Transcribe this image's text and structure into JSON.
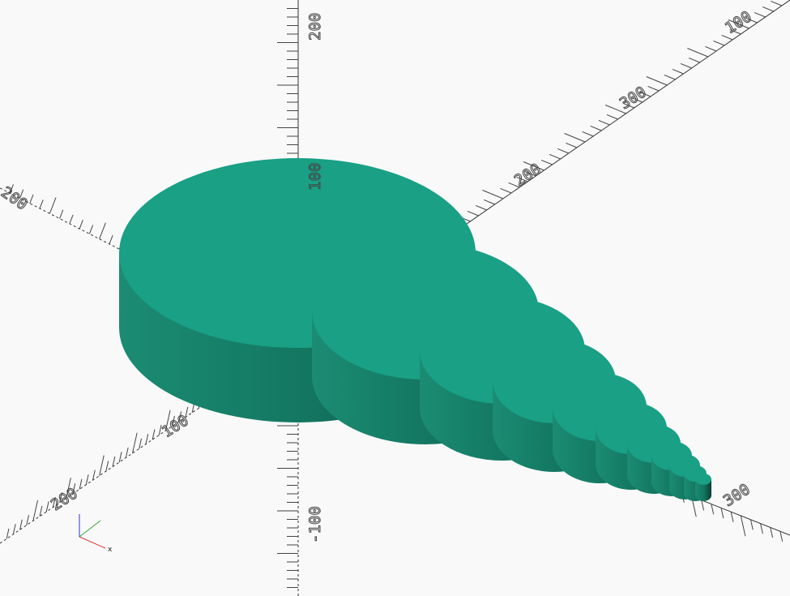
{
  "viewport": {
    "background": "#f9f9f9",
    "axis_color": "#333333",
    "model_colors": {
      "top": "#19a085",
      "side_light": "#1b8c73",
      "side_dark": "#0a3d31"
    }
  },
  "axes": {
    "labels": [
      {
        "id": "x-label-100",
        "text": "100"
      },
      {
        "id": "x-label-200",
        "text": "200"
      },
      {
        "id": "x-label-300",
        "text": "300"
      },
      {
        "id": "y-label-200",
        "text": "200"
      },
      {
        "id": "y-label-300",
        "text": "300"
      },
      {
        "id": "y-label-neg-100",
        "text": "100"
      },
      {
        "id": "y-label-neg-200",
        "text": "200"
      },
      {
        "id": "z-label-100",
        "text": "100"
      },
      {
        "id": "z-label-200",
        "text": "200"
      },
      {
        "id": "z-label-neg-100",
        "text": "-100"
      }
    ]
  },
  "model": {
    "name": "stacked-cylinders",
    "count": 11
  },
  "gizmo": {
    "x_label": "x",
    "colors": {
      "x": "#d33",
      "y": "#3a3",
      "z": "#33c"
    }
  }
}
